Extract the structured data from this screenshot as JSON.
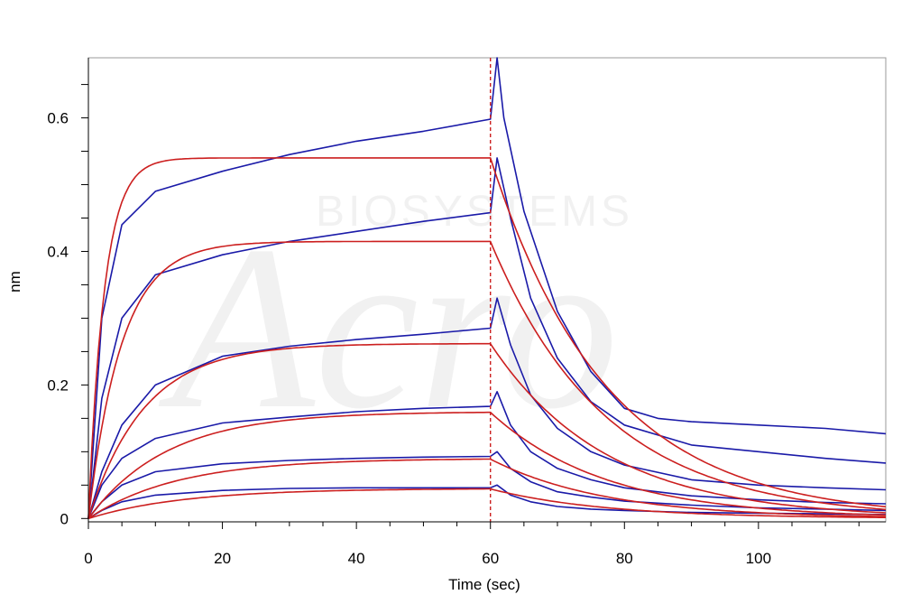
{
  "chart_data": {
    "type": "line",
    "xlabel": "Time (sec)",
    "ylabel": "nm",
    "xlim": [
      0,
      119
    ],
    "ylim": [
      -0.005,
      0.69
    ],
    "x_ticks": [
      0,
      20,
      40,
      60,
      80,
      100
    ],
    "x_tick_labels": [
      "0",
      "20",
      "40",
      "60",
      "80",
      "100"
    ],
    "y_ticks": [
      0,
      0.2,
      0.4,
      0.6
    ],
    "y_tick_labels": [
      "0",
      "0.2",
      "0.4",
      "0.6"
    ],
    "grid": false,
    "vertical_marker_x": 60,
    "colors": {
      "measured": "#1a1aa8",
      "fit": "#cc1f1f",
      "marker": "#cc1f1f",
      "axis": "#000000"
    },
    "series": [
      {
        "kind": "measured",
        "x": [
          0,
          2,
          5,
          10,
          20,
          30,
          40,
          50,
          60,
          61,
          62,
          65,
          70,
          75,
          80,
          85,
          90,
          100,
          110,
          119
        ],
        "y": [
          0,
          0.3,
          0.44,
          0.49,
          0.52,
          0.545,
          0.565,
          0.58,
          0.598,
          0.69,
          0.6,
          0.46,
          0.31,
          0.22,
          0.165,
          0.15,
          0.145,
          0.14,
          0.135,
          0.127
        ]
      },
      {
        "kind": "measured",
        "x": [
          0,
          2,
          5,
          10,
          20,
          30,
          40,
          50,
          60,
          61,
          63,
          66,
          70,
          75,
          80,
          90,
          100,
          110,
          119
        ],
        "y": [
          0,
          0.18,
          0.3,
          0.365,
          0.395,
          0.415,
          0.43,
          0.445,
          0.458,
          0.54,
          0.45,
          0.33,
          0.24,
          0.175,
          0.14,
          0.11,
          0.1,
          0.09,
          0.083
        ]
      },
      {
        "kind": "measured",
        "x": [
          0,
          2,
          5,
          10,
          20,
          30,
          40,
          50,
          60,
          61,
          63,
          66,
          70,
          75,
          80,
          90,
          100,
          110,
          119
        ],
        "y": [
          0,
          0.07,
          0.14,
          0.2,
          0.243,
          0.258,
          0.268,
          0.276,
          0.285,
          0.33,
          0.26,
          0.185,
          0.135,
          0.1,
          0.08,
          0.058,
          0.05,
          0.046,
          0.043
        ]
      },
      {
        "kind": "measured",
        "x": [
          0,
          2,
          5,
          10,
          20,
          30,
          40,
          50,
          60,
          61,
          63,
          66,
          70,
          75,
          80,
          90,
          100,
          110,
          119
        ],
        "y": [
          0,
          0.05,
          0.09,
          0.12,
          0.143,
          0.152,
          0.16,
          0.165,
          0.168,
          0.19,
          0.14,
          0.1,
          0.075,
          0.058,
          0.046,
          0.034,
          0.028,
          0.024,
          0.022
        ]
      },
      {
        "kind": "measured",
        "x": [
          0,
          2,
          5,
          10,
          20,
          30,
          40,
          50,
          60,
          61,
          63,
          66,
          70,
          75,
          80,
          90,
          100,
          110,
          119
        ],
        "y": [
          0,
          0.025,
          0.05,
          0.07,
          0.082,
          0.087,
          0.09,
          0.092,
          0.093,
          0.1,
          0.075,
          0.055,
          0.04,
          0.032,
          0.026,
          0.02,
          0.016,
          0.014,
          0.012
        ]
      },
      {
        "kind": "measured",
        "x": [
          0,
          2,
          5,
          10,
          20,
          30,
          40,
          50,
          60,
          61,
          63,
          66,
          70,
          75,
          80,
          90,
          100,
          110,
          119
        ],
        "y": [
          0,
          0.012,
          0.025,
          0.035,
          0.042,
          0.045,
          0.046,
          0.046,
          0.046,
          0.05,
          0.035,
          0.025,
          0.018,
          0.014,
          0.012,
          0.009,
          0.008,
          0.007,
          0.006
        ]
      },
      {
        "kind": "fit",
        "plateau": 0.54,
        "kon": 0.42,
        "koff": 0.058
      },
      {
        "kind": "fit",
        "plateau": 0.415,
        "kon": 0.2,
        "koff": 0.058
      },
      {
        "kind": "fit",
        "plateau": 0.262,
        "kon": 0.12,
        "koff": 0.058
      },
      {
        "kind": "fit",
        "plateau": 0.16,
        "kon": 0.085,
        "koff": 0.058
      },
      {
        "kind": "fit",
        "plateau": 0.09,
        "kon": 0.075,
        "koff": 0.058
      },
      {
        "kind": "fit",
        "plateau": 0.045,
        "kon": 0.07,
        "koff": 0.058
      }
    ]
  }
}
